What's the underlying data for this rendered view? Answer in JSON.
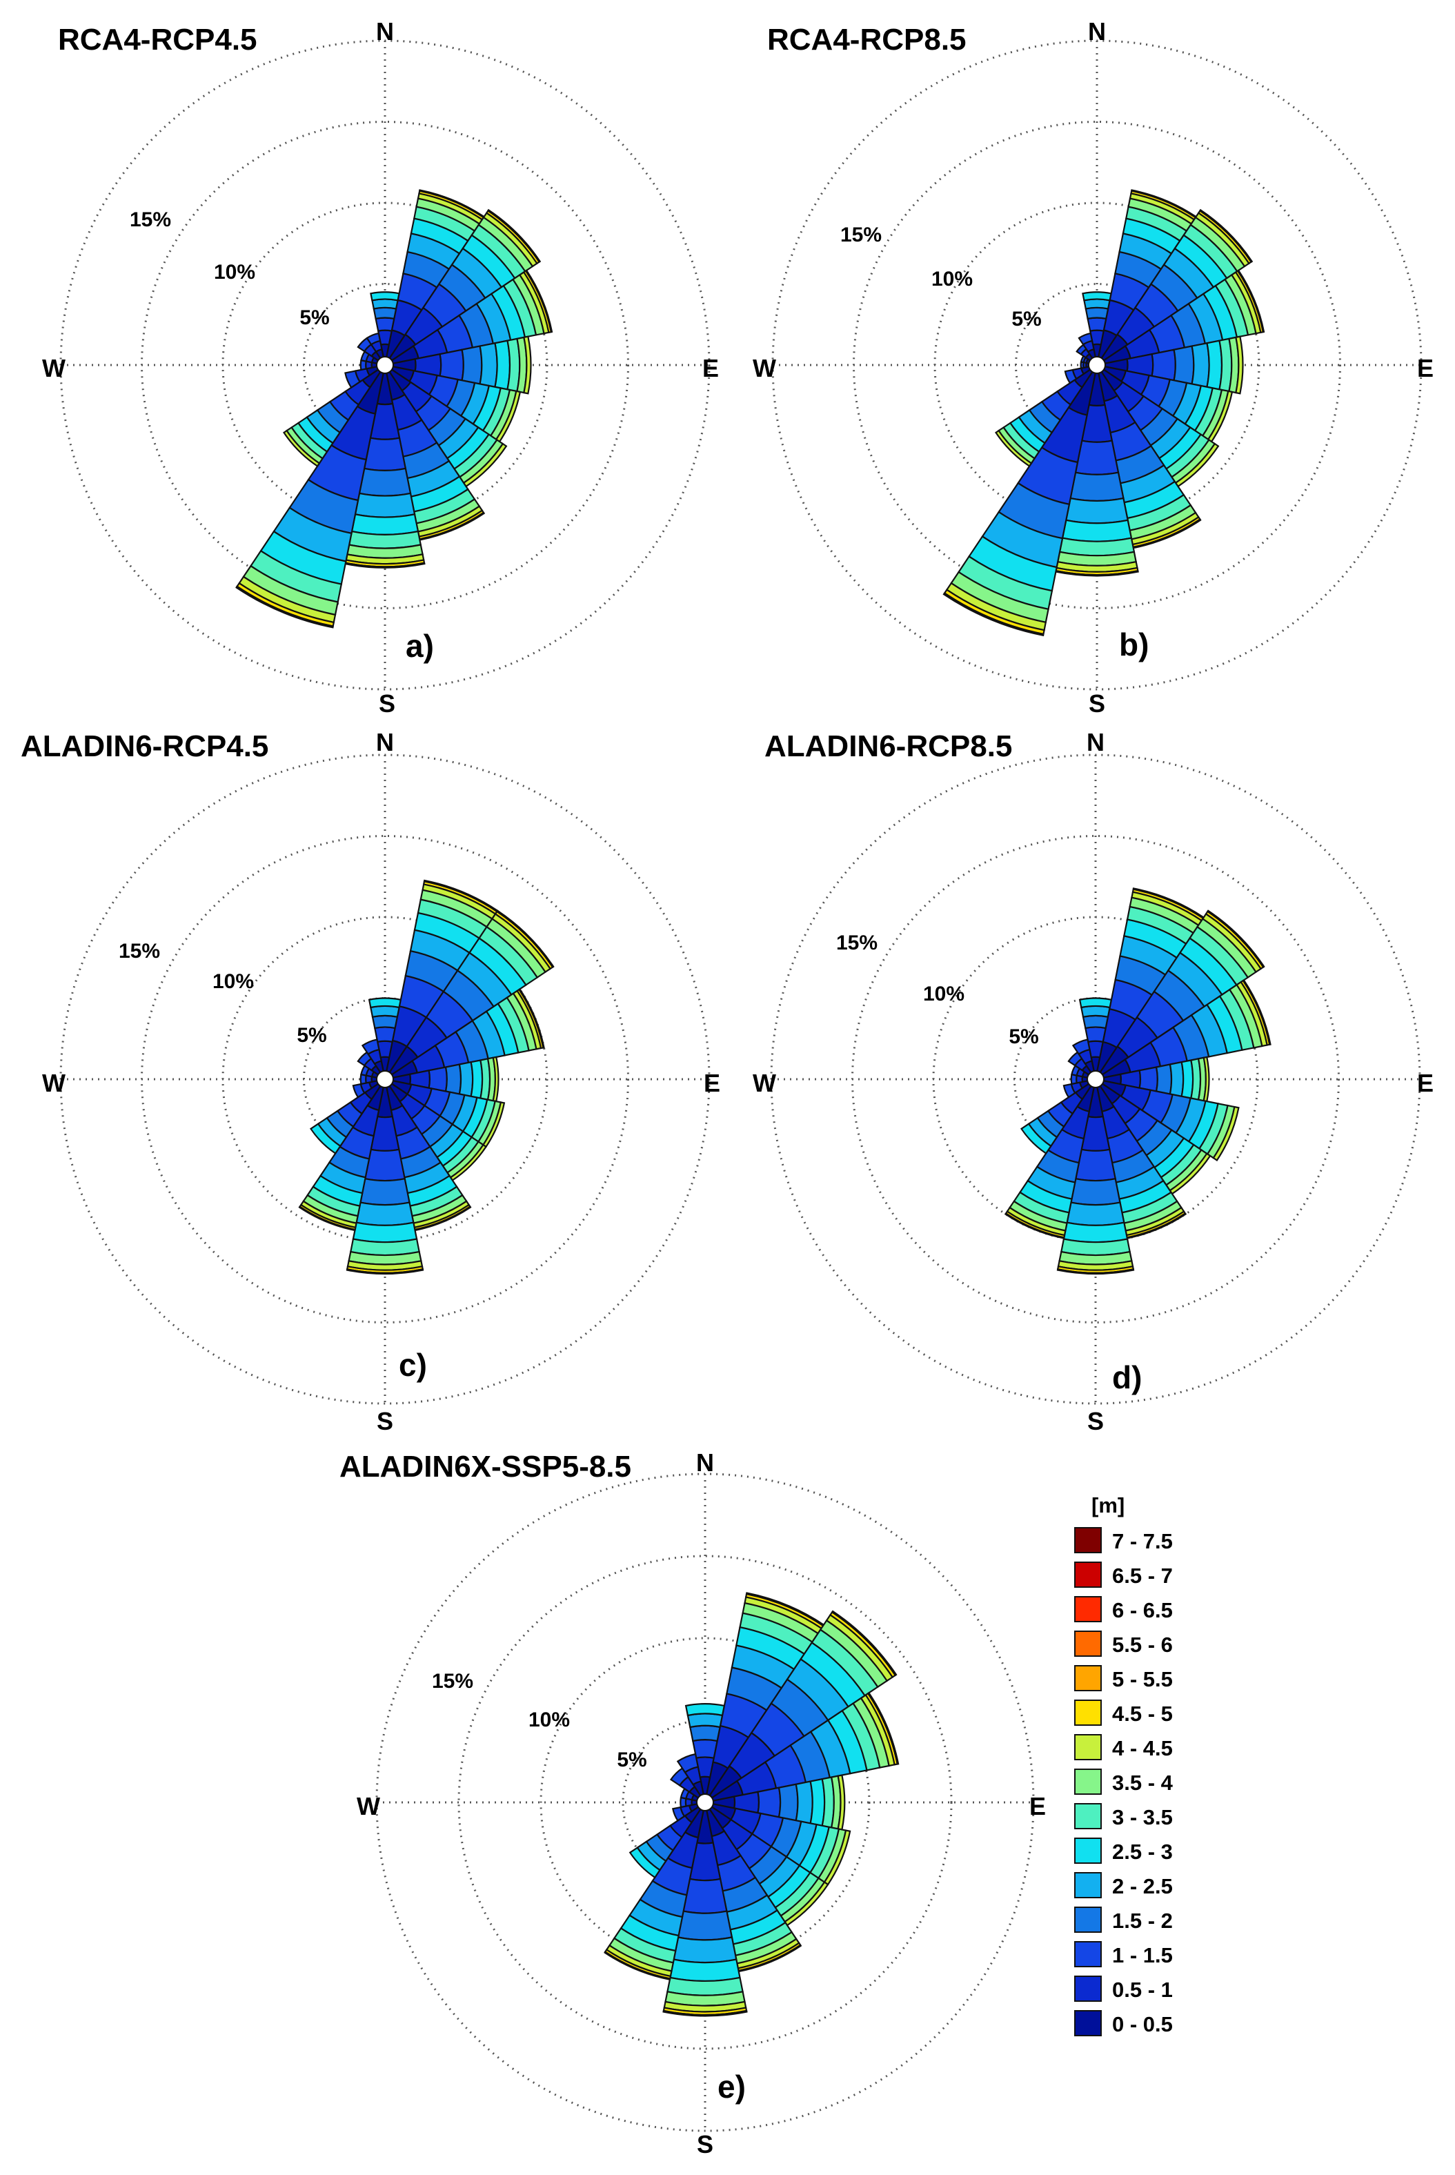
{
  "chart_data": {
    "type": "wind-rose",
    "legend": {
      "unit": "[m]",
      "bins": [
        {
          "label": "7 - 7.5",
          "color": "#7f0000"
        },
        {
          "label": "6.5 - 7",
          "color": "#cc0000"
        },
        {
          "label": "6 - 6.5",
          "color": "#ff2a00"
        },
        {
          "label": "5.5 - 6",
          "color": "#ff6a00"
        },
        {
          "label": "5 - 5.5",
          "color": "#ffa500"
        },
        {
          "label": "4.5 - 5",
          "color": "#ffe000"
        },
        {
          "label": "4 - 4.5",
          "color": "#c8f03c"
        },
        {
          "label": "3.5 - 4",
          "color": "#86f58a"
        },
        {
          "label": "3 - 3.5",
          "color": "#4ef0c0"
        },
        {
          "label": "2.5 - 3",
          "color": "#11e0f0"
        },
        {
          "label": "2 - 2.5",
          "color": "#13b0f0"
        },
        {
          "label": "1.5 - 2",
          "color": "#1478e6"
        },
        {
          "label": "1 - 1.5",
          "color": "#1446e6"
        },
        {
          "label": "0.5 - 1",
          "color": "#0b2ad0"
        },
        {
          "label": "0 - 0.5",
          "color": "#00109a"
        }
      ]
    },
    "ring_labels": [
      "5%",
      "10%",
      "15%"
    ],
    "rmax": 20,
    "cardinals": {
      "n": "N",
      "e": "E",
      "s": "S",
      "w": "W"
    },
    "sectors_deg": [
      0,
      22.5,
      45,
      67.5,
      90,
      112.5,
      135,
      157.5,
      180,
      202.5,
      225,
      247.5,
      270,
      292.5,
      315,
      337.5
    ],
    "panels": [
      {
        "id": "a",
        "title": "RCA4-RCP4.5",
        "label": "a)",
        "totals": [
          4.5,
          11,
          11.5,
          10.5,
          9,
          8.5,
          9,
          11,
          12.5,
          16.5,
          7.5,
          2.5,
          1.5,
          1.5,
          2,
          2
        ]
      },
      {
        "id": "b",
        "title": "RCA4-RCP8.5",
        "label": "b)",
        "totals": [
          4.5,
          11,
          11.5,
          10.5,
          9,
          8.5,
          9,
          11.5,
          13,
          17,
          7.5,
          2,
          1,
          1,
          1.5,
          2
        ]
      },
      {
        "id": "c",
        "title": "ALADIN6-RCP4.5",
        "label": "c)",
        "totals": [
          5,
          12.5,
          12.5,
          10,
          7,
          7.5,
          7.5,
          9.5,
          12,
          9.5,
          5.5,
          2,
          1.5,
          1.5,
          2,
          2.5
        ]
      },
      {
        "id": "d",
        "title": "ALADIN6-RCP8.5",
        "label": "d)",
        "totals": [
          5,
          12,
          12.5,
          11,
          7,
          9,
          8.5,
          10,
          12,
          10,
          5.5,
          2,
          1.5,
          1.5,
          2,
          2.5
        ]
      },
      {
        "id": "e",
        "title": "ALADIN6X-SSP5-8.5",
        "label": "e)",
        "totals": [
          6,
          13,
          14,
          12,
          8.5,
          9,
          9,
          10.5,
          13,
          11,
          5.5,
          2,
          1.5,
          1.5,
          2.5,
          3
        ]
      }
    ]
  }
}
